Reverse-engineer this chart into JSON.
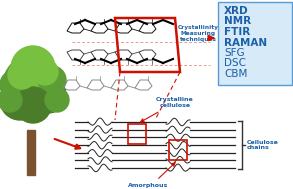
{
  "bg_color": "#ffffff",
  "techniques_list": [
    "XRD",
    "NMR",
    "FTIR",
    "RAMAN",
    "SFG",
    "DSC",
    "CBM"
  ],
  "techniques_bold": [
    true,
    true,
    true,
    true,
    false,
    false,
    false
  ],
  "techniques_box_color": "#d6eaf8",
  "techniques_box_edge": "#5b9bd5",
  "techniques_text_color": "#1a5fa8",
  "crystallinity_text": "Crystallinity\nMeasuring\ntechniques",
  "crystallinity_text_color": "#1a5fa8",
  "arrow_color": "#cc1100",
  "dashed_line_color": "#cc1100",
  "crystalline_label": "Crystalline\ncellulose",
  "amorphous_label": "Amorphous\ncellulose",
  "cellulose_chains_label": "Cellulose\nchains",
  "label_color": "#1a5fa8",
  "fiber_color": "#222222",
  "tree_green_dark": "#4a7c2a",
  "tree_green_mid": "#5c9e35",
  "tree_green_light": "#78c040",
  "tree_trunk": "#7a5230",
  "fig_width": 2.93,
  "fig_height": 1.89,
  "dpi": 100
}
